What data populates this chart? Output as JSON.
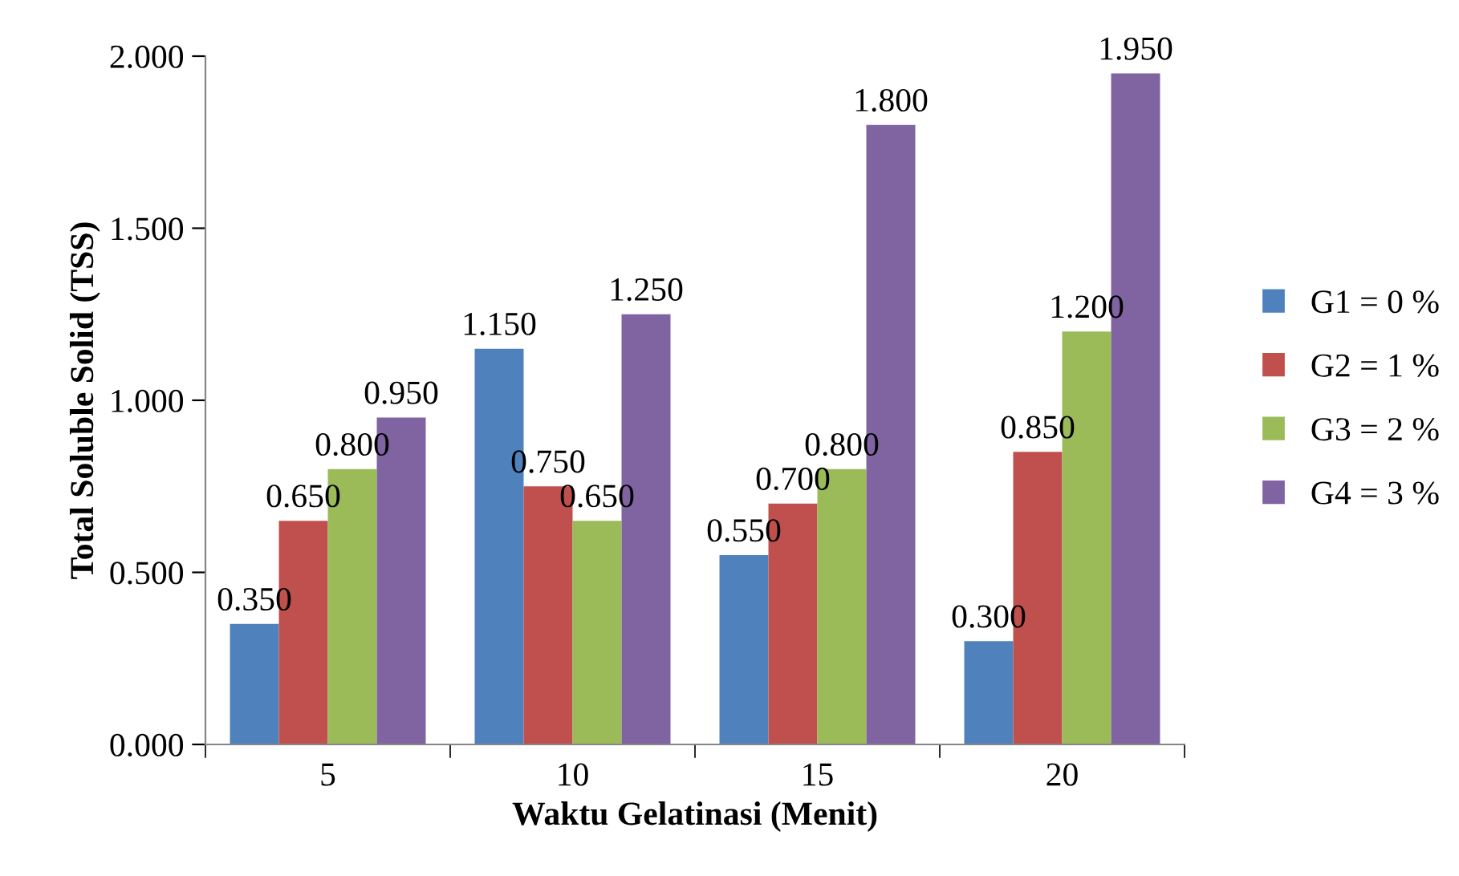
{
  "chart_data": {
    "type": "bar",
    "xlabel": "Waktu Gelatinasi (Menit)",
    "ylabel": "Total Soluble Solid (TSS)",
    "categories": [
      "5",
      "10",
      "15",
      "20"
    ],
    "series": [
      {
        "name": "G1 = 0 %",
        "color": "#4f81bd",
        "values": [
          0.35,
          1.15,
          0.55,
          0.3
        ],
        "value_labels": [
          "0.350",
          "1.150",
          "0.550",
          "0.300"
        ]
      },
      {
        "name": "G2 = 1 %",
        "color": "#c0504d",
        "values": [
          0.65,
          0.75,
          0.7,
          0.85
        ],
        "value_labels": [
          "0.650",
          "0.750",
          "0.700",
          "0.850"
        ]
      },
      {
        "name": "G3 = 2 %",
        "color": "#9bbb59",
        "values": [
          0.8,
          0.65,
          0.8,
          1.2
        ],
        "value_labels": [
          "0.800",
          "0.650",
          "0.800",
          "1.200"
        ]
      },
      {
        "name": "G4 = 3 %",
        "color": "#8064a2",
        "values": [
          0.95,
          1.25,
          1.8,
          1.95
        ],
        "value_labels": [
          "0.950",
          "1.250",
          "1.800",
          "1.950"
        ]
      }
    ],
    "ylim": [
      0,
      2
    ],
    "yticks": [
      {
        "value": 0,
        "label": "0.000"
      },
      {
        "value": 0.5,
        "label": "0.500"
      },
      {
        "value": 1,
        "label": "1.000"
      },
      {
        "value": 1.5,
        "label": "1.500"
      },
      {
        "value": 2,
        "label": "2.000"
      }
    ],
    "grid": false,
    "legend": "right"
  }
}
